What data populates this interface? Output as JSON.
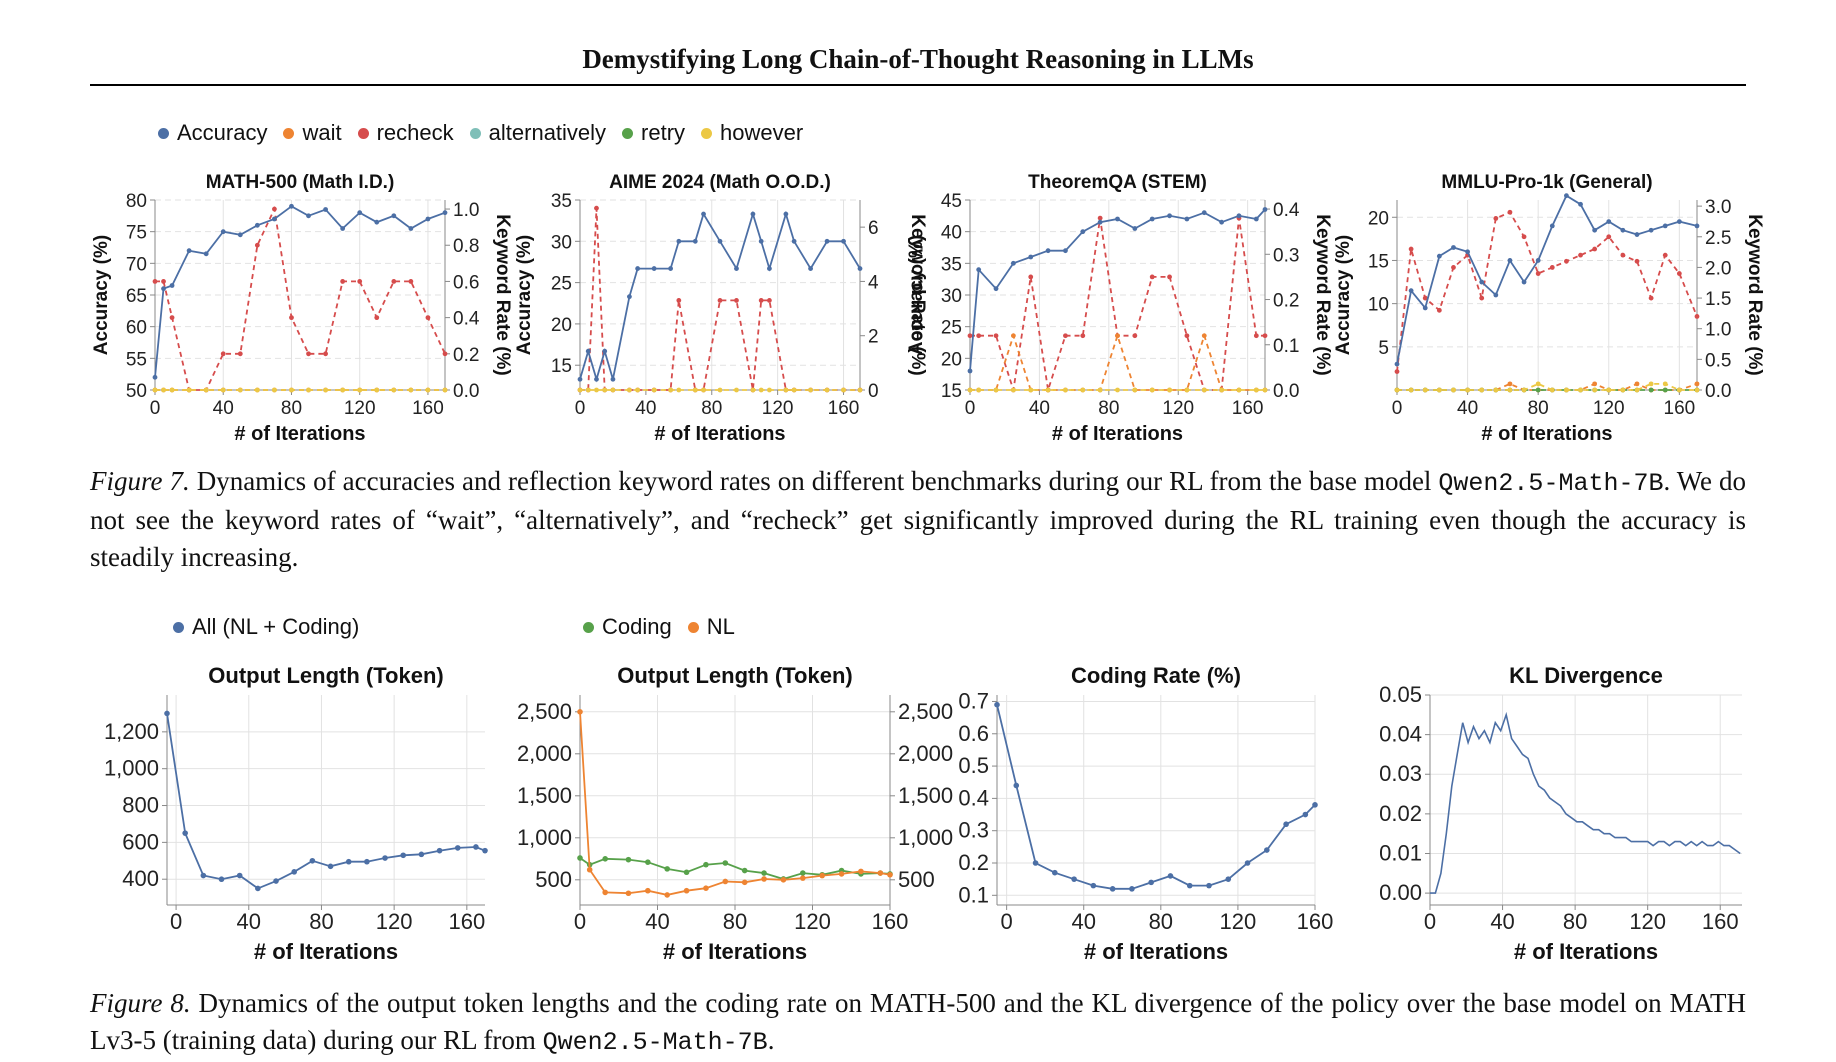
{
  "header": {
    "running_title": "Demystifying Long Chain-of-Thought Reasoning in LLMs"
  },
  "figure7": {
    "legend": [
      {
        "label": "Accuracy",
        "color": "#4c6fa5"
      },
      {
        "label": "wait",
        "color": "#ee8432"
      },
      {
        "label": "recheck",
        "color": "#d64c4c"
      },
      {
        "label": "alternatively",
        "color": "#7fbfb8"
      },
      {
        "label": "retry",
        "color": "#57a14a"
      },
      {
        "label": "however",
        "color": "#ecc845"
      }
    ],
    "caption": {
      "label": "Figure 7.",
      "text1": " Dynamics of accuracies and reflection keyword rates on different benchmarks during our RL from the base model ",
      "model": "Qwen2.5-Math-7B",
      "text2": ". We do not see the keyword rates of “wait”, “alternatively”, and “recheck” get significantly improved during the RL training even though the accuracy is steadily increasing."
    }
  },
  "figure8": {
    "legend_left": [
      {
        "label": "All (NL + Coding)",
        "color": "#4c6fa5"
      }
    ],
    "legend_right": [
      {
        "label": "Coding",
        "color": "#57a14a"
      },
      {
        "label": "NL",
        "color": "#ee8432"
      }
    ],
    "caption": {
      "label": "Figure 8.",
      "text1": " Dynamics of the output token lengths and the coding rate on MATH-500 and the KL divergence of the policy over the base model on MATH Lv3-5 (training data) during our RL from ",
      "model": "Qwen2.5-Math-7B",
      "text2": "."
    }
  },
  "chart_data": [
    {
      "type": "line",
      "title": "MATH-500 (Math I.D.)",
      "xlabel": "# of Iterations",
      "ylabel": "Accuracy (%)",
      "y2label": "Keyword Rate (%)",
      "xlim": [
        0,
        170
      ],
      "xticks": [
        0,
        40,
        80,
        120,
        160
      ],
      "ylim": [
        50,
        80
      ],
      "yticks": [
        50,
        55,
        60,
        65,
        70,
        75,
        80
      ],
      "y2lim": [
        0,
        1.05
      ],
      "y2ticks": [
        "0.0",
        "0.2",
        "0.4",
        "0.6",
        "0.8",
        "1.0"
      ],
      "x": [
        0,
        5,
        10,
        20,
        30,
        40,
        50,
        60,
        70,
        80,
        90,
        100,
        110,
        120,
        130,
        140,
        150,
        160,
        170
      ],
      "series": [
        {
          "name": "Accuracy",
          "axis": "left",
          "color": "#4c6fa5",
          "values": [
            52,
            66,
            66.5,
            72,
            71.5,
            75,
            74.5,
            76,
            77,
            79,
            77.5,
            78.5,
            75.5,
            78,
            76.5,
            77.5,
            75.5,
            77,
            78
          ]
        },
        {
          "name": "recheck",
          "axis": "right",
          "color": "#d64c4c",
          "dashed": true,
          "values": [
            0.6,
            0.6,
            0.4,
            0.0,
            0.0,
            0.2,
            0.2,
            0.8,
            1.0,
            0.4,
            0.2,
            0.2,
            0.6,
            0.6,
            0.4,
            0.6,
            0.6,
            0.4,
            0.2
          ]
        },
        {
          "name": "wait",
          "axis": "right",
          "color": "#ee8432",
          "dashed": true,
          "values": [
            0,
            0,
            0,
            0,
            0,
            0,
            0,
            0,
            0,
            0,
            0,
            0,
            0,
            0,
            0,
            0,
            0,
            0,
            0
          ]
        },
        {
          "name": "however",
          "axis": "right",
          "color": "#ecc845",
          "dashed": true,
          "values": [
            0,
            0,
            0,
            0,
            0,
            0,
            0,
            0,
            0,
            0,
            0,
            0,
            0,
            0,
            0,
            0,
            0,
            0,
            0
          ]
        }
      ]
    },
    {
      "type": "line",
      "title": "AIME 2024 (Math O.O.D.)",
      "xlabel": "# of Iterations",
      "ylabel": "Accuracy (%)",
      "y2label": "Keyword Rate (%)",
      "xlim": [
        0,
        170
      ],
      "xticks": [
        0,
        40,
        80,
        120,
        160
      ],
      "ylim": [
        12,
        35
      ],
      "yticks": [
        15,
        20,
        25,
        30,
        35
      ],
      "y2lim": [
        0,
        7
      ],
      "y2ticks": [
        "0",
        "2",
        "4",
        "6"
      ],
      "x": [
        0,
        5,
        10,
        15,
        20,
        30,
        35,
        45,
        55,
        60,
        70,
        75,
        85,
        95,
        105,
        110,
        115,
        125,
        130,
        140,
        150,
        160,
        170
      ],
      "series": [
        {
          "name": "Accuracy",
          "axis": "left",
          "color": "#4c6fa5",
          "values": [
            13.3,
            16.7,
            13.3,
            16.7,
            13.3,
            23.3,
            26.7,
            26.7,
            26.7,
            30,
            30,
            33.3,
            30,
            26.7,
            33.3,
            30,
            26.7,
            33.3,
            30,
            26.7,
            30,
            30,
            26.7
          ]
        },
        {
          "name": "recheck",
          "axis": "right",
          "color": "#d64c4c",
          "dashed": true,
          "values": [
            0,
            0,
            6.7,
            0,
            0,
            0,
            0,
            0,
            0,
            3.3,
            0,
            0,
            3.3,
            3.3,
            0,
            3.3,
            3.3,
            0,
            0,
            0,
            0,
            0,
            0
          ]
        },
        {
          "name": "however",
          "axis": "right",
          "color": "#ecc845",
          "dashed": true,
          "values": [
            0,
            0,
            0,
            0,
            0,
            0,
            0,
            0,
            0,
            0,
            0,
            0,
            0,
            0,
            0,
            0,
            0,
            0,
            0,
            0,
            0,
            0,
            0
          ]
        }
      ]
    },
    {
      "type": "line",
      "title": "TheoremQA (STEM)",
      "xlabel": "# of Iterations",
      "ylabel": "Accuracy (%)",
      "y2label": "Keyword Rate (%)",
      "xlim": [
        0,
        170
      ],
      "xticks": [
        0,
        40,
        80,
        120,
        160
      ],
      "ylim": [
        15,
        45
      ],
      "yticks": [
        15,
        20,
        25,
        30,
        35,
        40,
        45
      ],
      "y2lim": [
        0,
        0.42
      ],
      "y2ticks": [
        "0.0",
        "0.1",
        "0.2",
        "0.3",
        "0.4"
      ],
      "x": [
        0,
        5,
        15,
        25,
        35,
        45,
        55,
        65,
        75,
        85,
        95,
        105,
        115,
        125,
        135,
        145,
        155,
        165,
        170
      ],
      "series": [
        {
          "name": "Accuracy",
          "axis": "left",
          "color": "#4c6fa5",
          "values": [
            18,
            34,
            31,
            35,
            36,
            37,
            37,
            40,
            41.5,
            42,
            40.5,
            42,
            42.5,
            42,
            43,
            41.5,
            42.5,
            42,
            43.5
          ]
        },
        {
          "name": "recheck",
          "axis": "right",
          "color": "#d64c4c",
          "dashed": true,
          "values": [
            0.12,
            0.12,
            0.12,
            0.0,
            0.25,
            0.0,
            0.12,
            0.12,
            0.38,
            0.12,
            0.12,
            0.25,
            0.25,
            0.12,
            0.0,
            0.0,
            0.38,
            0.12,
            0.12
          ]
        },
        {
          "name": "wait",
          "axis": "right",
          "color": "#ee8432",
          "dashed": true,
          "values": [
            0,
            0,
            0,
            0.12,
            0,
            0,
            0,
            0,
            0,
            0.12,
            0,
            0,
            0,
            0,
            0.12,
            0,
            0,
            0,
            0
          ]
        },
        {
          "name": "however",
          "axis": "right",
          "color": "#ecc845",
          "dashed": true,
          "values": [
            0,
            0,
            0,
            0,
            0,
            0,
            0,
            0,
            0,
            0,
            0,
            0,
            0,
            0,
            0,
            0,
            0,
            0,
            0
          ]
        }
      ]
    },
    {
      "type": "line",
      "title": "MMLU-Pro-1k (General)",
      "xlabel": "# of Iterations",
      "ylabel": "Accuracy (%)",
      "y2label": "Keyword Rate (%)",
      "xlim": [
        0,
        170
      ],
      "xticks": [
        0,
        40,
        80,
        120,
        160
      ],
      "ylim": [
        0,
        22
      ],
      "yticks": [
        5,
        10,
        15,
        20
      ],
      "y2lim": [
        0,
        3.1
      ],
      "y2ticks": [
        "0.0",
        "0.5",
        "1.0",
        "1.5",
        "2.0",
        "2.5",
        "3.0"
      ],
      "x": [
        0,
        8,
        16,
        24,
        32,
        40,
        48,
        56,
        64,
        72,
        80,
        88,
        96,
        104,
        112,
        120,
        128,
        136,
        144,
        152,
        160,
        170
      ],
      "series": [
        {
          "name": "Accuracy",
          "axis": "left",
          "color": "#4c6fa5",
          "values": [
            3,
            11.5,
            9.5,
            15.5,
            16.5,
            16,
            12.5,
            11,
            15,
            12.5,
            15,
            19,
            22.5,
            21.5,
            18.5,
            19.5,
            18.5,
            18,
            18.5,
            19,
            19.5,
            19
          ]
        },
        {
          "name": "recheck",
          "axis": "right",
          "color": "#d64c4c",
          "dashed": true,
          "values": [
            0.3,
            2.3,
            1.5,
            1.3,
            2.0,
            2.2,
            1.5,
            2.8,
            2.9,
            2.5,
            1.9,
            2.0,
            2.1,
            2.2,
            2.3,
            2.5,
            2.2,
            2.1,
            1.5,
            2.2,
            1.9,
            1.2
          ]
        },
        {
          "name": "wait",
          "axis": "right",
          "color": "#ee8432",
          "dashed": true,
          "values": [
            0,
            0,
            0,
            0,
            0,
            0,
            0,
            0,
            0.1,
            0,
            0,
            0,
            0,
            0,
            0.1,
            0,
            0,
            0.1,
            0,
            0,
            0,
            0.1
          ]
        },
        {
          "name": "retry",
          "axis": "right",
          "color": "#57a14a",
          "dashed": true,
          "values": [
            0,
            0,
            0,
            0,
            0,
            0,
            0,
            0,
            0,
            0,
            0,
            0,
            0,
            0,
            0,
            0,
            0,
            0,
            0,
            0,
            0,
            0
          ]
        },
        {
          "name": "however",
          "axis": "right",
          "color": "#ecc845",
          "dashed": true,
          "values": [
            0,
            0,
            0,
            0,
            0,
            0,
            0,
            0,
            0,
            0,
            0.1,
            0,
            0,
            0,
            0,
            0,
            0,
            0,
            0.1,
            0.1,
            0,
            0
          ]
        }
      ]
    },
    {
      "type": "line",
      "title": "Output Length (Token)",
      "xlabel": "# of Iterations",
      "xlim": [
        -5,
        170
      ],
      "xticks": [
        0,
        40,
        80,
        120,
        160
      ],
      "ylim": [
        260,
        1400
      ],
      "yticks": [
        400,
        600,
        800,
        1000,
        1200
      ],
      "ytick_labels": [
        "400",
        "600",
        "800",
        "1,000",
        "1,200"
      ],
      "x": [
        -5,
        5,
        15,
        25,
        35,
        45,
        55,
        65,
        75,
        85,
        95,
        105,
        115,
        125,
        135,
        145,
        155,
        165,
        170
      ],
      "series": [
        {
          "name": "All (NL + Coding)",
          "color": "#4c6fa5",
          "values": [
            1300,
            650,
            420,
            400,
            420,
            350,
            390,
            440,
            500,
            470,
            495,
            495,
            515,
            530,
            535,
            555,
            570,
            575,
            555
          ]
        }
      ]
    },
    {
      "type": "line",
      "title": "Output Length (Token)",
      "xlabel": "# of Iterations",
      "xlim": [
        0,
        160
      ],
      "xticks": [
        0,
        40,
        80,
        120,
        160
      ],
      "ylim": [
        200,
        2700
      ],
      "yticks": [
        500,
        1000,
        1500,
        2000,
        2500
      ],
      "ytick_labels": [
        "500",
        "1,000",
        "1,500",
        "2,000",
        "2,500"
      ],
      "x": [
        0,
        5,
        13,
        25,
        35,
        45,
        55,
        65,
        75,
        85,
        95,
        105,
        115,
        125,
        135,
        145,
        155,
        160
      ],
      "series": [
        {
          "name": "Coding",
          "color": "#57a14a",
          "values": [
            760,
            680,
            750,
            740,
            710,
            630,
            590,
            680,
            700,
            610,
            580,
            510,
            580,
            560,
            610,
            570,
            580,
            570
          ]
        },
        {
          "name": "NL",
          "color": "#ee8432",
          "values": [
            2500,
            620,
            350,
            340,
            370,
            320,
            370,
            400,
            480,
            470,
            510,
            500,
            520,
            550,
            570,
            600,
            580,
            560
          ]
        }
      ]
    },
    {
      "type": "line",
      "title": "Coding Rate (%)",
      "xlabel": "# of Iterations",
      "xlim": [
        -5,
        160
      ],
      "xticks": [
        0,
        40,
        80,
        120,
        160
      ],
      "ylim": [
        0.07,
        0.72
      ],
      "yticks": [
        0.1,
        0.2,
        0.3,
        0.4,
        0.5,
        0.6,
        0.7
      ],
      "ytick_labels": [
        "0.1",
        "0.2",
        "0.3",
        "0.4",
        "0.5",
        "0.6",
        "0.7"
      ],
      "x": [
        -5,
        5,
        15,
        25,
        35,
        45,
        55,
        65,
        75,
        85,
        95,
        105,
        115,
        125,
        135,
        145,
        155,
        160
      ],
      "series": [
        {
          "name": "All (NL + Coding)",
          "color": "#4c6fa5",
          "values": [
            0.69,
            0.44,
            0.2,
            0.17,
            0.15,
            0.13,
            0.12,
            0.12,
            0.14,
            0.16,
            0.13,
            0.13,
            0.15,
            0.2,
            0.24,
            0.32,
            0.35,
            0.38
          ]
        }
      ]
    },
    {
      "type": "line",
      "title": "KL Divergence",
      "xlabel": "# of Iterations",
      "xlim": [
        0,
        172
      ],
      "xticks": [
        0,
        40,
        80,
        120,
        160
      ],
      "ylim": [
        -0.003,
        0.05
      ],
      "yticks": [
        0.0,
        0.01,
        0.02,
        0.03,
        0.04,
        0.05
      ],
      "ytick_labels": [
        "0.00",
        "0.01",
        "0.02",
        "0.03",
        "0.04",
        "0.05"
      ],
      "x": [
        0,
        3,
        6,
        9,
        12,
        15,
        18,
        21,
        24,
        27,
        30,
        33,
        36,
        39,
        42,
        45,
        48,
        51,
        54,
        57,
        60,
        63,
        66,
        69,
        72,
        75,
        78,
        81,
        84,
        87,
        90,
        93,
        96,
        99,
        102,
        105,
        108,
        111,
        114,
        117,
        120,
        123,
        126,
        129,
        132,
        135,
        138,
        141,
        144,
        147,
        150,
        153,
        156,
        159,
        162,
        165,
        168,
        171
      ],
      "series": [
        {
          "name": "All (NL + Coding)",
          "color": "#4c6fa5",
          "values": [
            0.0,
            0.0,
            0.005,
            0.015,
            0.027,
            0.035,
            0.043,
            0.038,
            0.042,
            0.039,
            0.041,
            0.038,
            0.043,
            0.041,
            0.045,
            0.039,
            0.037,
            0.035,
            0.034,
            0.03,
            0.027,
            0.026,
            0.024,
            0.023,
            0.022,
            0.02,
            0.019,
            0.018,
            0.018,
            0.017,
            0.016,
            0.016,
            0.015,
            0.015,
            0.014,
            0.014,
            0.014,
            0.013,
            0.013,
            0.013,
            0.013,
            0.012,
            0.013,
            0.013,
            0.012,
            0.013,
            0.013,
            0.012,
            0.013,
            0.012,
            0.013,
            0.012,
            0.012,
            0.013,
            0.012,
            0.012,
            0.011,
            0.01
          ]
        }
      ]
    }
  ]
}
